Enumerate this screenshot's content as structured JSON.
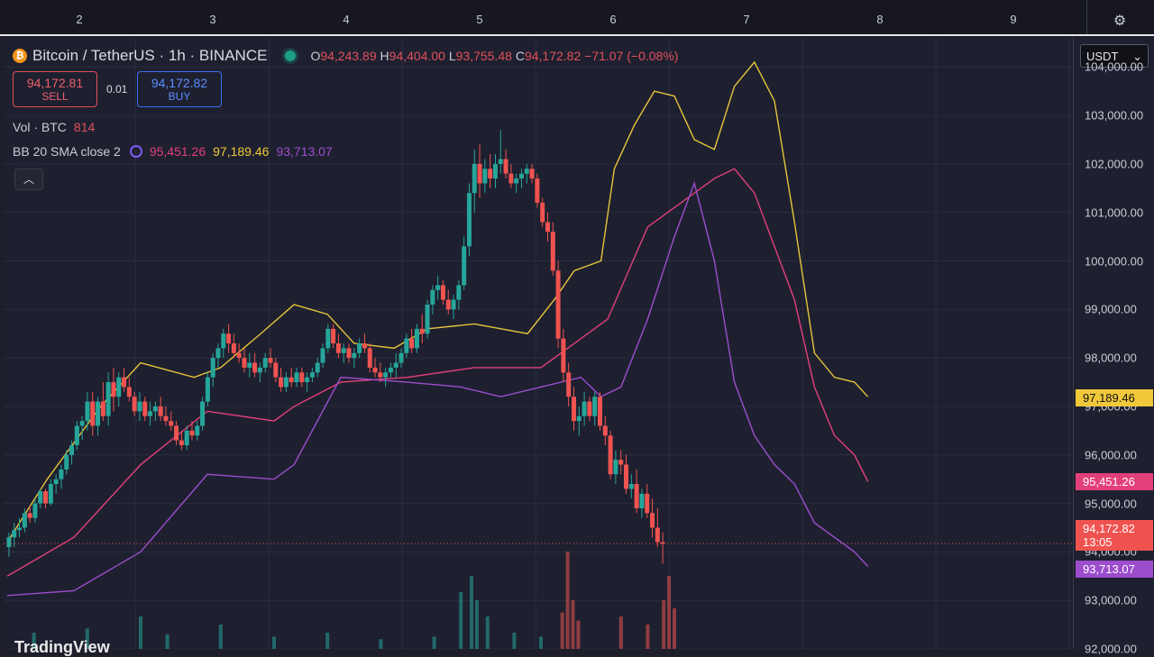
{
  "top_axis": {
    "ticks": [
      "2",
      "3",
      "4",
      "5",
      "6",
      "7",
      "8",
      "9"
    ]
  },
  "header": {
    "symbol": "Bitcoin / TetherUS · 1h · BINANCE",
    "open_label": "O",
    "open": "94,243.89",
    "high_label": "H",
    "high": "94,404.00",
    "low_label": "L",
    "low": "93,755.48",
    "close_label": "C",
    "close": "94,172.82",
    "change": "−71.07 (−0.08%)"
  },
  "trade": {
    "sell_price": "94,172.81",
    "sell_label": "SELL",
    "spread": "0.01",
    "buy_price": "94,172.82",
    "buy_label": "BUY"
  },
  "volume": {
    "label": "Vol · BTC",
    "value": "814"
  },
  "bb": {
    "label": "BB 20 SMA close 2",
    "basis": "95,451.26",
    "upper": "97,189.46",
    "lower": "93,713.07"
  },
  "price_axis": {
    "currency": "USDT",
    "ticks": [
      "104,000.00",
      "103,000.00",
      "102,000.00",
      "101,000.00",
      "100,000.00",
      "99,000.00",
      "98,000.00",
      "97,000.00",
      "96,000.00",
      "95,000.00",
      "94,000.00",
      "93,000.00",
      "92,000.00"
    ]
  },
  "last_price": {
    "value": "94,172.82",
    "countdown": "13:05"
  },
  "watermark": "TradingView",
  "colors": {
    "up": "#26a69a",
    "down": "#ef5350",
    "upper_band": "#e7c43a",
    "basis": "#e2407a",
    "lower_band": "#9c4dcc"
  },
  "chart_data": {
    "type": "candlestick",
    "title": "Bitcoin / TetherUS · 1h · BINANCE",
    "ylim": [
      92000,
      104600
    ],
    "x_ticks": [
      "2",
      "3",
      "4",
      "5",
      "6",
      "7",
      "8",
      "9"
    ],
    "bands": {
      "upper": [
        [
          0,
          94200
        ],
        [
          0.3,
          95500
        ],
        [
          0.7,
          97000
        ],
        [
          1,
          97900
        ],
        [
          1.4,
          97600
        ],
        [
          1.6,
          97800
        ],
        [
          1.9,
          98500
        ],
        [
          2.15,
          99100
        ],
        [
          2.4,
          98900
        ],
        [
          2.6,
          98300
        ],
        [
          2.9,
          98200
        ],
        [
          3.15,
          98600
        ],
        [
          3.5,
          98700
        ],
        [
          3.9,
          98500
        ],
        [
          4.1,
          99200
        ],
        [
          4.25,
          99800
        ],
        [
          4.45,
          100000
        ],
        [
          4.55,
          101900
        ],
        [
          4.7,
          102800
        ],
        [
          4.85,
          103500
        ],
        [
          5.0,
          103400
        ],
        [
          5.15,
          102500
        ],
        [
          5.3,
          102300
        ],
        [
          5.45,
          103600
        ],
        [
          5.6,
          104100
        ],
        [
          5.75,
          103300
        ],
        [
          5.9,
          100800
        ],
        [
          6.05,
          98100
        ],
        [
          6.2,
          97600
        ],
        [
          6.35,
          97500
        ],
        [
          6.45,
          97200
        ]
      ],
      "basis": [
        [
          0,
          93500
        ],
        [
          0.5,
          94300
        ],
        [
          1,
          95800
        ],
        [
          1.5,
          96900
        ],
        [
          2,
          96700
        ],
        [
          2.15,
          97000
        ],
        [
          2.5,
          97500
        ],
        [
          3,
          97600
        ],
        [
          3.5,
          97800
        ],
        [
          4.0,
          97800
        ],
        [
          4.5,
          98800
        ],
        [
          4.8,
          100700
        ],
        [
          5.1,
          101300
        ],
        [
          5.3,
          101700
        ],
        [
          5.45,
          101900
        ],
        [
          5.6,
          101400
        ],
        [
          5.9,
          99200
        ],
        [
          6.05,
          97400
        ],
        [
          6.2,
          96400
        ],
        [
          6.35,
          96000
        ],
        [
          6.45,
          95450
        ]
      ],
      "lower": [
        [
          0,
          93100
        ],
        [
          0.5,
          93200
        ],
        [
          1,
          94000
        ],
        [
          1.5,
          95600
        ],
        [
          2,
          95500
        ],
        [
          2.15,
          95800
        ],
        [
          2.5,
          97600
        ],
        [
          3,
          97500
        ],
        [
          3.4,
          97400
        ],
        [
          3.7,
          97200
        ],
        [
          4.0,
          97400
        ],
        [
          4.3,
          97600
        ],
        [
          4.45,
          97200
        ],
        [
          4.6,
          97400
        ],
        [
          4.8,
          98800
        ],
        [
          5.0,
          100500
        ],
        [
          5.15,
          101600
        ],
        [
          5.3,
          100000
        ],
        [
          5.45,
          97500
        ],
        [
          5.6,
          96400
        ],
        [
          5.75,
          95800
        ],
        [
          5.9,
          95400
        ],
        [
          6.05,
          94600
        ],
        [
          6.2,
          94300
        ],
        [
          6.35,
          94000
        ],
        [
          6.45,
          93700
        ]
      ]
    },
    "candles": [
      [
        0.0,
        94100,
        94400,
        93900,
        94300
      ],
      [
        0.04,
        94300,
        94600,
        94100,
        94450
      ],
      [
        0.08,
        94450,
        94700,
        94300,
        94500
      ],
      [
        0.12,
        94500,
        94900,
        94400,
        94800
      ],
      [
        0.16,
        94800,
        94950,
        94600,
        94700
      ],
      [
        0.2,
        94700,
        95100,
        94600,
        95000
      ],
      [
        0.24,
        95000,
        95300,
        94900,
        95250
      ],
      [
        0.28,
        95250,
        95300,
        94900,
        95000
      ],
      [
        0.32,
        95000,
        95500,
        94950,
        95400
      ],
      [
        0.36,
        95400,
        95600,
        95200,
        95500
      ],
      [
        0.4,
        95500,
        95800,
        95300,
        95700
      ],
      [
        0.44,
        95700,
        96100,
        95600,
        96000
      ],
      [
        0.48,
        96000,
        96300,
        95800,
        96200
      ],
      [
        0.52,
        96200,
        96700,
        96100,
        96600
      ],
      [
        0.56,
        96600,
        96800,
        96300,
        96700
      ],
      [
        0.6,
        96700,
        97300,
        96500,
        97100
      ],
      [
        0.64,
        97100,
        97300,
        96400,
        96600
      ],
      [
        0.68,
        96600,
        97200,
        96400,
        97100
      ],
      [
        0.72,
        97100,
        97500,
        96700,
        96800
      ],
      [
        0.76,
        96800,
        97700,
        96600,
        97500
      ],
      [
        0.8,
        97500,
        97800,
        96900,
        97200
      ],
      [
        0.84,
        97200,
        97700,
        97000,
        97600
      ],
      [
        0.88,
        97600,
        97800,
        97300,
        97400
      ],
      [
        0.92,
        97400,
        97600,
        97100,
        97200
      ],
      [
        0.96,
        97200,
        97300,
        96800,
        96900
      ],
      [
        1.0,
        96900,
        97300,
        96700,
        97100
      ],
      [
        1.04,
        97100,
        97200,
        96700,
        96800
      ],
      [
        1.08,
        96800,
        97100,
        96600,
        96900
      ],
      [
        1.12,
        96900,
        97100,
        96700,
        97000
      ],
      [
        1.16,
        97000,
        97200,
        96700,
        96800
      ],
      [
        1.2,
        96800,
        97000,
        96600,
        96700
      ],
      [
        1.24,
        96700,
        96900,
        96500,
        96600
      ],
      [
        1.28,
        96600,
        96700,
        96200,
        96300
      ],
      [
        1.32,
        96300,
        96500,
        96100,
        96200
      ],
      [
        1.36,
        96200,
        96600,
        96100,
        96500
      ],
      [
        1.4,
        96500,
        96700,
        96300,
        96400
      ],
      [
        1.44,
        96400,
        96700,
        96300,
        96600
      ],
      [
        1.48,
        96600,
        97200,
        96500,
        97100
      ],
      [
        1.52,
        97100,
        97700,
        97000,
        97600
      ],
      [
        1.56,
        97600,
        98100,
        97400,
        98000
      ],
      [
        1.6,
        98000,
        98300,
        97800,
        98200
      ],
      [
        1.64,
        98200,
        98600,
        98000,
        98500
      ],
      [
        1.68,
        98500,
        98700,
        98100,
        98300
      ],
      [
        1.72,
        98300,
        98500,
        98000,
        98100
      ],
      [
        1.76,
        98100,
        98300,
        97900,
        98000
      ],
      [
        1.8,
        98000,
        98200,
        97700,
        97800
      ],
      [
        1.84,
        97800,
        98100,
        97600,
        97900
      ],
      [
        1.88,
        97900,
        98100,
        97600,
        97700
      ],
      [
        1.92,
        97700,
        97900,
        97500,
        97800
      ],
      [
        1.96,
        97800,
        98100,
        97700,
        98000
      ],
      [
        2.0,
        98000,
        98200,
        97800,
        97900
      ],
      [
        2.04,
        97900,
        98000,
        97500,
        97600
      ],
      [
        2.08,
        97600,
        97800,
        97300,
        97400
      ],
      [
        2.12,
        97400,
        97700,
        97300,
        97600
      ],
      [
        2.16,
        97600,
        97800,
        97400,
        97500
      ],
      [
        2.2,
        97500,
        97800,
        97400,
        97700
      ],
      [
        2.24,
        97700,
        97800,
        97400,
        97500
      ],
      [
        2.28,
        97500,
        97700,
        97300,
        97600
      ],
      [
        2.32,
        97600,
        97800,
        97500,
        97700
      ],
      [
        2.36,
        97700,
        98000,
        97600,
        97900
      ],
      [
        2.4,
        97900,
        98300,
        97800,
        98200
      ],
      [
        2.44,
        98200,
        98700,
        98100,
        98600
      ],
      [
        2.48,
        98600,
        98700,
        98200,
        98300
      ],
      [
        2.52,
        98300,
        98500,
        98000,
        98100
      ],
      [
        2.56,
        98100,
        98300,
        97900,
        98200
      ],
      [
        2.6,
        98200,
        98300,
        97900,
        98000
      ],
      [
        2.64,
        98000,
        98200,
        97800,
        98100
      ],
      [
        2.68,
        98100,
        98400,
        98000,
        98300
      ],
      [
        2.72,
        98300,
        98500,
        98100,
        98200
      ],
      [
        2.76,
        98200,
        98300,
        97700,
        97800
      ],
      [
        2.8,
        97800,
        98000,
        97600,
        97700
      ],
      [
        2.84,
        97700,
        97900,
        97500,
        97600
      ],
      [
        2.88,
        97600,
        97800,
        97400,
        97700
      ],
      [
        2.92,
        97700,
        97900,
        97600,
        97800
      ],
      [
        2.96,
        97800,
        98100,
        97600,
        97900
      ],
      [
        3.0,
        97900,
        98200,
        97800,
        98100
      ],
      [
        3.04,
        98100,
        98500,
        98000,
        98400
      ],
      [
        3.08,
        98400,
        98600,
        98100,
        98200
      ],
      [
        3.12,
        98200,
        98700,
        98100,
        98600
      ],
      [
        3.16,
        98600,
        98900,
        98300,
        98500
      ],
      [
        3.2,
        98500,
        99200,
        98400,
        99100
      ],
      [
        3.24,
        99100,
        99500,
        98900,
        99400
      ],
      [
        3.28,
        99400,
        99700,
        99200,
        99500
      ],
      [
        3.32,
        99500,
        99600,
        99100,
        99200
      ],
      [
        3.36,
        99200,
        99400,
        98900,
        99000
      ],
      [
        3.4,
        99000,
        99300,
        98800,
        99200
      ],
      [
        3.44,
        99200,
        99600,
        99000,
        99500
      ],
      [
        3.48,
        99500,
        100500,
        99400,
        100300
      ],
      [
        3.52,
        100300,
        101600,
        100100,
        101400
      ],
      [
        3.56,
        101400,
        102300,
        101000,
        102000
      ],
      [
        3.6,
        102000,
        102400,
        101300,
        101600
      ],
      [
        3.64,
        101600,
        102100,
        101400,
        101900
      ],
      [
        3.68,
        101900,
        102200,
        101500,
        101700
      ],
      [
        3.72,
        101700,
        102200,
        101500,
        102000
      ],
      [
        3.76,
        102000,
        102700,
        101800,
        102100
      ],
      [
        3.8,
        102100,
        102300,
        101700,
        101800
      ],
      [
        3.84,
        101800,
        102000,
        101500,
        101600
      ],
      [
        3.88,
        101600,
        101800,
        101400,
        101700
      ],
      [
        3.92,
        101700,
        101900,
        101500,
        101800
      ],
      [
        3.96,
        101800,
        102000,
        101600,
        101900
      ],
      [
        4.0,
        101900,
        102000,
        101600,
        101700
      ],
      [
        4.04,
        101700,
        101800,
        101100,
        101200
      ],
      [
        4.08,
        101200,
        101300,
        100700,
        100800
      ],
      [
        4.12,
        100800,
        101000,
        100400,
        100600
      ],
      [
        4.16,
        100600,
        100800,
        99700,
        99800
      ],
      [
        4.2,
        99800,
        100000,
        98200,
        98400
      ],
      [
        4.24,
        98400,
        98600,
        97500,
        97700
      ],
      [
        4.28,
        97700,
        97900,
        97000,
        97200
      ],
      [
        4.32,
        97200,
        97400,
        96500,
        96700
      ],
      [
        4.36,
        96700,
        97000,
        96400,
        96800
      ],
      [
        4.4,
        96800,
        97300,
        96600,
        97100
      ],
      [
        4.44,
        97100,
        97200,
        96700,
        96800
      ],
      [
        4.48,
        96800,
        97300,
        96600,
        97200
      ],
      [
        4.52,
        97200,
        97300,
        96500,
        96600
      ],
      [
        4.56,
        96600,
        96800,
        96200,
        96400
      ],
      [
        4.6,
        96400,
        96500,
        95500,
        95600
      ],
      [
        4.64,
        95600,
        96100,
        95400,
        95900
      ],
      [
        4.68,
        95900,
        96100,
        95600,
        95800
      ],
      [
        4.72,
        95800,
        96000,
        95200,
        95300
      ],
      [
        4.76,
        95300,
        95600,
        95100,
        95400
      ],
      [
        4.8,
        95400,
        95700,
        94800,
        94900
      ],
      [
        4.84,
        94900,
        95300,
        94700,
        95200
      ],
      [
        4.88,
        95200,
        95400,
        94700,
        94800
      ],
      [
        4.92,
        94800,
        95100,
        94300,
        94500
      ],
      [
        4.96,
        94500,
        94900,
        94100,
        94200
      ],
      [
        5.0,
        94200,
        94400,
        93760,
        94170
      ]
    ],
    "volume": [
      [
        0.2,
        20
      ],
      [
        0.6,
        25
      ],
      [
        1.0,
        40
      ],
      [
        1.2,
        18
      ],
      [
        1.6,
        30
      ],
      [
        2.0,
        15
      ],
      [
        2.4,
        20
      ],
      [
        2.8,
        12
      ],
      [
        3.2,
        15
      ],
      [
        3.4,
        70
      ],
      [
        3.48,
        90
      ],
      [
        3.52,
        60
      ],
      [
        3.6,
        40
      ],
      [
        3.8,
        20
      ],
      [
        4.0,
        15
      ],
      [
        4.16,
        45
      ],
      [
        4.2,
        120
      ],
      [
        4.24,
        60
      ],
      [
        4.28,
        35
      ],
      [
        4.6,
        40
      ],
      [
        4.8,
        30
      ],
      [
        4.92,
        60
      ],
      [
        4.96,
        90
      ],
      [
        5.0,
        50
      ]
    ]
  }
}
